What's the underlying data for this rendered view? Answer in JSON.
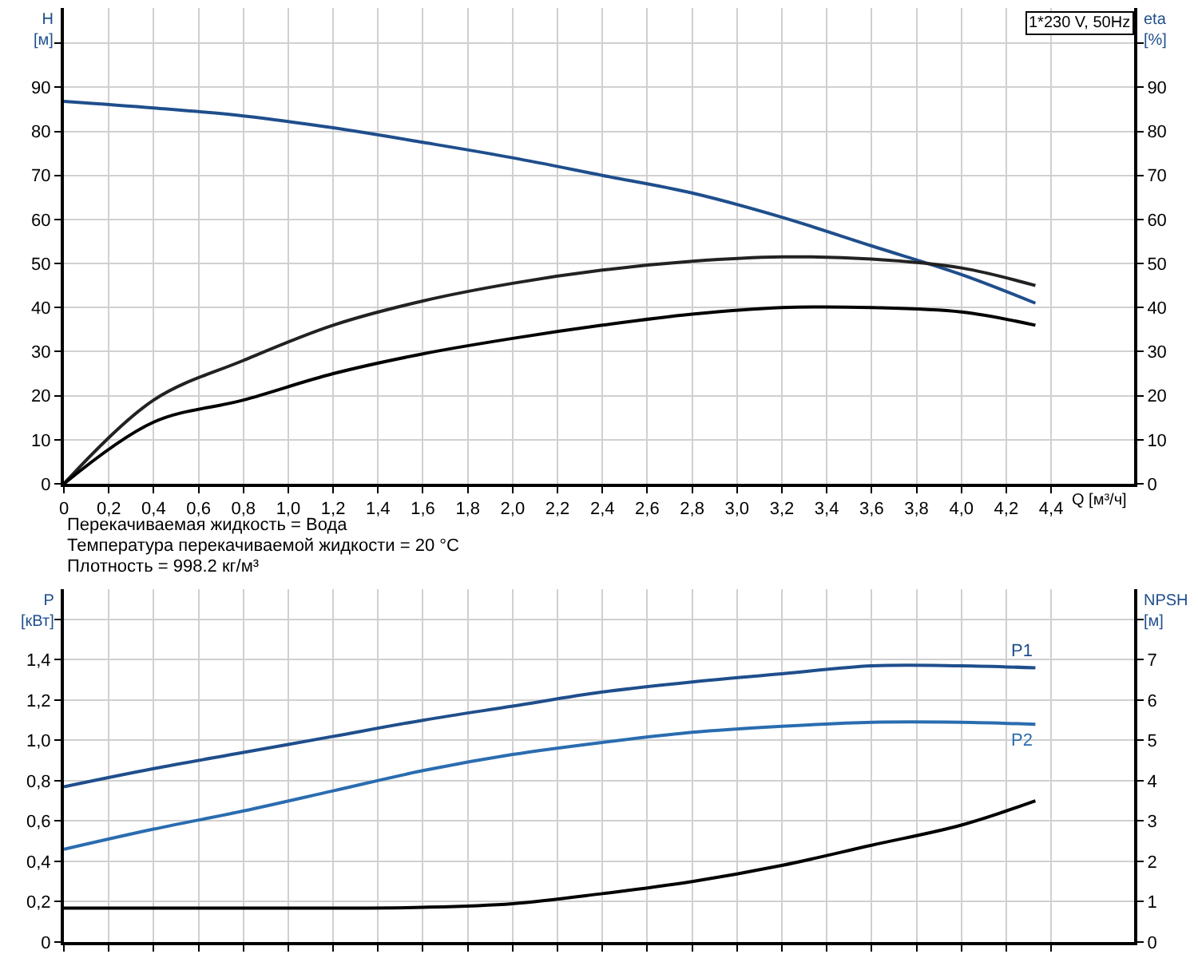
{
  "chart_data": [
    {
      "type": "line",
      "title": "1*230 V, 50Hz",
      "ylabel": "H [м]",
      "y2label": "eta [%]",
      "xlabel": "Q [м³/ч]",
      "annotations": [
        "Перекачиваемая жидкость = Вода",
        "Температура перекачиваемой жидкости = 20 °C",
        "Плотность = 998.2 кг/м³"
      ],
      "x": [
        0,
        0.4,
        0.8,
        1.2,
        1.6,
        2.0,
        2.4,
        2.8,
        3.2,
        3.6,
        4.0,
        4.33
      ],
      "series": [
        {
          "color": "#1f4e8c",
          "values": [
            86.8,
            85.3,
            83.5,
            80.8,
            77.5,
            74,
            70,
            66,
            60.5,
            54,
            47.5,
            41
          ]
        },
        {
          "color": "#222222",
          "axis": "y2",
          "values": [
            0,
            19,
            28,
            36,
            41.5,
            45.5,
            48.5,
            50.5,
            51.5,
            51,
            49,
            45
          ]
        },
        {
          "color": "#000000",
          "axis": "y2",
          "values": [
            0,
            14,
            19,
            25,
            29.5,
            33,
            36,
            38.5,
            40,
            40,
            39,
            36
          ]
        }
      ],
      "xlim": [
        0,
        4.77
      ],
      "xticks": [
        0,
        {
          "value": 0.2,
          "label": "0,2"
        },
        {
          "value": 0.4,
          "label": "0,4"
        },
        {
          "value": 0.6,
          "label": "0,6"
        },
        {
          "value": 0.8,
          "label": "0,8"
        },
        {
          "value": 1.0,
          "label": "1,0"
        },
        {
          "value": 1.2,
          "label": "1,2"
        },
        {
          "value": 1.4,
          "label": "1,4"
        },
        {
          "value": 1.6,
          "label": "1,6"
        },
        {
          "value": 1.8,
          "label": "1,8"
        },
        {
          "value": 2.0,
          "label": "2,0"
        },
        {
          "value": 2.2,
          "label": "2,2"
        },
        {
          "value": 2.4,
          "label": "2,4"
        },
        {
          "value": 2.6,
          "label": "2,6"
        },
        {
          "value": 2.8,
          "label": "2,8"
        },
        {
          "value": 3.0,
          "label": "3,0"
        },
        {
          "value": 3.2,
          "label": "3,2"
        },
        {
          "value": 3.4,
          "label": "3,4"
        },
        {
          "value": 3.6,
          "label": "3,6"
        },
        {
          "value": 3.8,
          "label": "3,8"
        },
        {
          "value": 4.0,
          "label": "4,0"
        },
        {
          "value": 4.2,
          "label": "4,2"
        },
        {
          "value": 4.4,
          "label": "4,4"
        }
      ],
      "ylim": [
        0,
        108
      ],
      "yticks": [
        0,
        10,
        20,
        30,
        40,
        50,
        60,
        70,
        80,
        90,
        {
          "value": 100,
          "label": null
        }
      ],
      "y2lim": [
        0,
        108
      ],
      "y2ticks": [
        0,
        10,
        20,
        30,
        40,
        50,
        60,
        70,
        80,
        90,
        {
          "value": 100,
          "label": null
        }
      ],
      "grid": true,
      "legend": false
    },
    {
      "type": "line",
      "ylabel": "P [кВт]",
      "y2label": "NPSH [м]",
      "x": [
        0,
        0.4,
        0.8,
        1.2,
        1.6,
        2.0,
        2.4,
        2.8,
        3.2,
        3.6,
        4.0,
        4.33
      ],
      "series": [
        {
          "name": "P1",
          "color": "#1f4e8c",
          "values": [
            0.77,
            0.86,
            0.94,
            1.02,
            1.1,
            1.17,
            1.24,
            1.29,
            1.33,
            1.37,
            1.37,
            1.36
          ]
        },
        {
          "name": "P2",
          "color": "#2a6cb0",
          "values": [
            0.46,
            0.56,
            0.65,
            0.75,
            0.85,
            0.93,
            0.99,
            1.04,
            1.07,
            1.09,
            1.09,
            1.08
          ]
        },
        {
          "color": "#000000",
          "axis": "y2",
          "values": [
            0.84,
            0.84,
            0.84,
            0.84,
            0.86,
            0.95,
            1.2,
            1.5,
            1.9,
            2.4,
            2.9,
            3.5
          ]
        }
      ],
      "xlim": [
        0,
        4.77
      ],
      "xticks": [
        0,
        0.2,
        0.4,
        0.6,
        0.8,
        1.0,
        1.2,
        1.4,
        1.6,
        1.8,
        2.0,
        2.2,
        2.4,
        2.6,
        2.8,
        3.0,
        3.2,
        3.4,
        3.6,
        3.8,
        4.0,
        4.2,
        4.4
      ],
      "ylim": [
        0,
        1.75
      ],
      "yticks": [
        0,
        {
          "value": 0.2,
          "label": "0,2"
        },
        {
          "value": 0.4,
          "label": "0,4"
        },
        {
          "value": 0.6,
          "label": "0,6"
        },
        {
          "value": 0.8,
          "label": "0,8"
        },
        {
          "value": 1.0,
          "label": "1,0"
        },
        {
          "value": 1.2,
          "label": "1,2"
        },
        {
          "value": 1.4,
          "label": "1,4"
        },
        {
          "value": 1.6,
          "label": null
        }
      ],
      "y2lim": [
        0,
        8.75
      ],
      "y2ticks": [
        0,
        1,
        2,
        3,
        4,
        5,
        6,
        7,
        {
          "value": 8,
          "label": null
        }
      ],
      "tick_labels": "y",
      "grid": true,
      "legend": false
    }
  ]
}
